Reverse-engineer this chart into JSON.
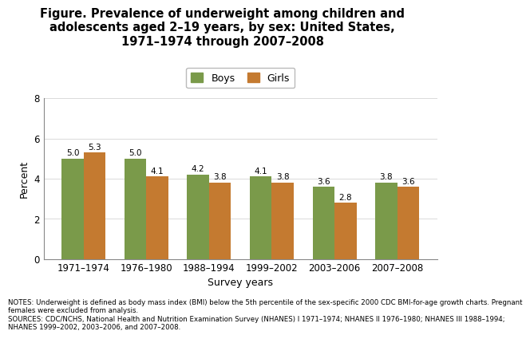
{
  "title_line1": "Figure. Prevalence of underweight among children and",
  "title_line2": "adolescents aged 2–19 years, by sex: United States,",
  "title_line3": "1971–1974 through 2007–2008",
  "categories": [
    "1971–1974",
    "1976–1980",
    "1988–1994",
    "1999–2002",
    "2003–2006",
    "2007–2008"
  ],
  "boys_values": [
    5.0,
    5.0,
    4.2,
    4.1,
    3.6,
    3.8
  ],
  "girls_values": [
    5.3,
    4.1,
    3.8,
    3.8,
    2.8,
    3.6
  ],
  "boys_color": "#7a9a4a",
  "girls_color": "#c47a30",
  "ylabel": "Percent",
  "xlabel": "Survey years",
  "ylim": [
    0,
    8
  ],
  "yticks": [
    0,
    2,
    4,
    6,
    8
  ],
  "legend_labels": [
    "Boys",
    "Girls"
  ],
  "bar_width": 0.35,
  "notes_line1": "NOTES: Underweight is defined as body mass index (BMI) below the 5th percentile of the sex-specific 2000 CDC BMI-for-age growth charts. Pregnant",
  "notes_line2": "females were excluded from analysis.",
  "notes_line3": "SOURCES: CDC/NCHS, National Health and Nutrition Examination Survey (NHANES) I 1971–1974; NHANES II 1976–1980; NHANES III 1988–1994;",
  "notes_line4": "NHANES 1999–2002, 2003–2006, and 2007–2008.",
  "background_color": "#ffffff",
  "title_fontsize": 10.5,
  "label_fontsize": 9,
  "tick_fontsize": 8.5,
  "notes_fontsize": 6.2,
  "value_fontsize": 7.5
}
